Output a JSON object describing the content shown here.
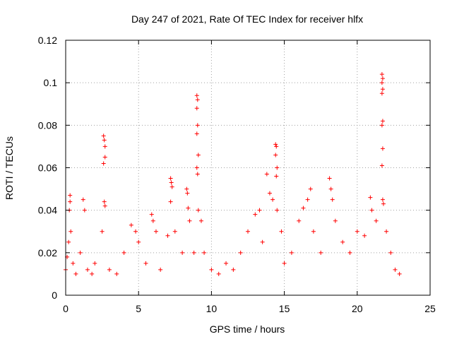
{
  "chart_data": {
    "type": "scatter",
    "title": "Day 247 of 2021, Rate Of TEC Index for receiver hlfx",
    "xlabel": "GPS time / hours",
    "ylabel": "ROTI / TECUs",
    "xlim": [
      0,
      25
    ],
    "ylim": [
      0,
      0.12
    ],
    "xticks": [
      "0",
      "5",
      "10",
      "15",
      "20",
      "25"
    ],
    "yticks": [
      "0",
      "0.02",
      "0.04",
      "0.06",
      "0.08",
      "0.1",
      "0.12"
    ],
    "grid": true,
    "marker": "plus",
    "series": [
      {
        "color": "#ff0000",
        "points": [
          [
            0.0,
            0.012
          ],
          [
            0.1,
            0.018
          ],
          [
            0.2,
            0.025
          ],
          [
            0.25,
            0.04
          ],
          [
            0.3,
            0.047
          ],
          [
            0.3,
            0.044
          ],
          [
            0.35,
            0.03
          ],
          [
            0.5,
            0.015
          ],
          [
            0.7,
            0.01
          ],
          [
            1.0,
            0.02
          ],
          [
            1.2,
            0.045
          ],
          [
            1.3,
            0.04
          ],
          [
            1.5,
            0.012
          ],
          [
            1.8,
            0.01
          ],
          [
            2.0,
            0.015
          ],
          [
            2.5,
            0.03
          ],
          [
            2.6,
            0.075
          ],
          [
            2.65,
            0.073
          ],
          [
            2.7,
            0.07
          ],
          [
            2.7,
            0.065
          ],
          [
            2.6,
            0.062
          ],
          [
            2.65,
            0.044
          ],
          [
            2.7,
            0.042
          ],
          [
            3.0,
            0.012
          ],
          [
            3.5,
            0.01
          ],
          [
            4.0,
            0.02
          ],
          [
            4.5,
            0.033
          ],
          [
            4.8,
            0.03
          ],
          [
            5.0,
            0.025
          ],
          [
            5.5,
            0.015
          ],
          [
            5.9,
            0.038
          ],
          [
            6.0,
            0.035
          ],
          [
            6.2,
            0.03
          ],
          [
            6.5,
            0.012
          ],
          [
            7.0,
            0.028
          ],
          [
            7.2,
            0.055
          ],
          [
            7.25,
            0.053
          ],
          [
            7.3,
            0.051
          ],
          [
            7.2,
            0.044
          ],
          [
            7.5,
            0.03
          ],
          [
            8.0,
            0.02
          ],
          [
            8.3,
            0.05
          ],
          [
            8.35,
            0.048
          ],
          [
            8.4,
            0.041
          ],
          [
            8.5,
            0.035
          ],
          [
            8.8,
            0.02
          ],
          [
            9.0,
            0.094
          ],
          [
            9.05,
            0.092
          ],
          [
            9.0,
            0.088
          ],
          [
            9.05,
            0.08
          ],
          [
            9.0,
            0.076
          ],
          [
            9.1,
            0.066
          ],
          [
            9.0,
            0.06
          ],
          [
            9.05,
            0.057
          ],
          [
            9.1,
            0.04
          ],
          [
            9.3,
            0.035
          ],
          [
            9.5,
            0.02
          ],
          [
            10.0,
            0.012
          ],
          [
            10.5,
            0.01
          ],
          [
            11.0,
            0.015
          ],
          [
            11.5,
            0.012
          ],
          [
            12.0,
            0.02
          ],
          [
            12.5,
            0.03
          ],
          [
            13.0,
            0.038
          ],
          [
            13.3,
            0.04
          ],
          [
            13.5,
            0.025
          ],
          [
            13.8,
            0.057
          ],
          [
            14.0,
            0.048
          ],
          [
            14.2,
            0.045
          ],
          [
            14.4,
            0.071
          ],
          [
            14.45,
            0.07
          ],
          [
            14.4,
            0.066
          ],
          [
            14.5,
            0.06
          ],
          [
            14.45,
            0.056
          ],
          [
            14.5,
            0.04
          ],
          [
            14.8,
            0.03
          ],
          [
            15.0,
            0.015
          ],
          [
            15.5,
            0.02
          ],
          [
            16.0,
            0.035
          ],
          [
            16.3,
            0.041
          ],
          [
            16.6,
            0.045
          ],
          [
            16.8,
            0.05
          ],
          [
            17.0,
            0.03
          ],
          [
            17.5,
            0.02
          ],
          [
            18.1,
            0.055
          ],
          [
            18.2,
            0.05
          ],
          [
            18.3,
            0.045
          ],
          [
            18.5,
            0.035
          ],
          [
            19.0,
            0.025
          ],
          [
            19.5,
            0.02
          ],
          [
            20.0,
            0.03
          ],
          [
            20.5,
            0.028
          ],
          [
            20.9,
            0.046
          ],
          [
            21.0,
            0.04
          ],
          [
            21.3,
            0.035
          ],
          [
            21.7,
            0.104
          ],
          [
            21.75,
            0.102
          ],
          [
            21.7,
            0.1
          ],
          [
            21.75,
            0.097
          ],
          [
            21.7,
            0.095
          ],
          [
            21.75,
            0.082
          ],
          [
            21.7,
            0.08
          ],
          [
            21.75,
            0.069
          ],
          [
            21.7,
            0.061
          ],
          [
            21.75,
            0.045
          ],
          [
            21.8,
            0.043
          ],
          [
            22.0,
            0.03
          ],
          [
            22.3,
            0.02
          ],
          [
            22.6,
            0.012
          ],
          [
            22.9,
            0.01
          ]
        ]
      }
    ]
  }
}
